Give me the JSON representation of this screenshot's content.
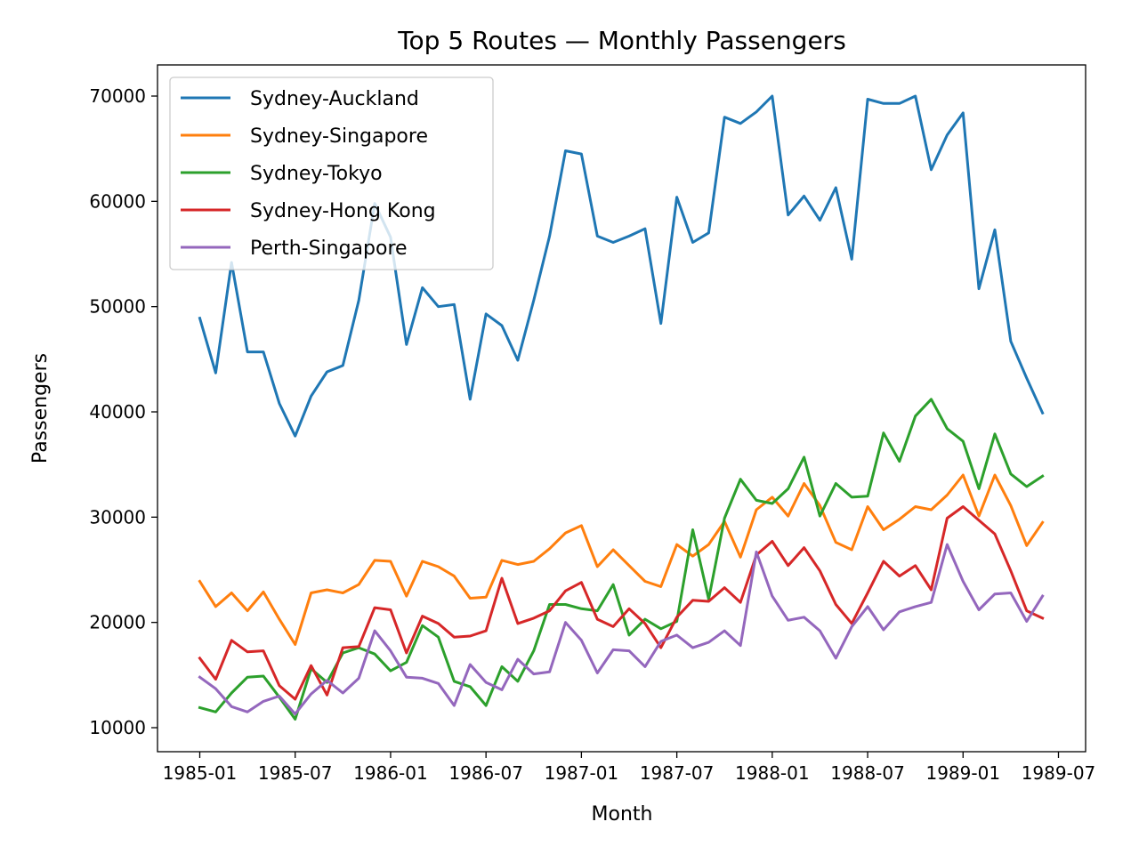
{
  "chart_data": {
    "type": "line",
    "title": "Top 5 Routes — Monthly Passengers",
    "xlabel": "Month",
    "ylabel": "Passengers",
    "x_start": "1985-01",
    "xticks": [
      "1985-01",
      "1985-07",
      "1986-01",
      "1986-07",
      "1987-01",
      "1987-07",
      "1988-01",
      "1988-07",
      "1989-01",
      "1989-07"
    ],
    "yticks": [
      10000,
      20000,
      30000,
      40000,
      50000,
      60000,
      70000
    ],
    "ylim": [
      8000,
      73000
    ],
    "grid": false,
    "legend_position": "top-left",
    "series": [
      {
        "name": "Sydney-Auckland",
        "color": "#1f77b4",
        "values": [
          48900,
          43700,
          54200,
          45700,
          45700,
          40800,
          37700,
          41500,
          43800,
          44400,
          50600,
          59800,
          56600,
          46400,
          51800,
          50000,
          50200,
          41200,
          49300,
          48200,
          44900,
          50600,
          56700,
          64800,
          64500,
          56700,
          56100,
          56700,
          57400,
          48400,
          60400,
          56100,
          57000,
          68000,
          67400,
          68500,
          70000,
          58700,
          60500,
          58200,
          61300,
          54500,
          69700,
          69300,
          69300,
          70000,
          63000,
          66300,
          68400,
          51700,
          57300,
          46700,
          43200,
          39900
        ]
      },
      {
        "name": "Sydney-Singapore",
        "color": "#ff7f0e",
        "values": [
          23900,
          21500,
          22800,
          21100,
          22900,
          20300,
          17900,
          22800,
          23100,
          22800,
          23600,
          25900,
          25800,
          22500,
          25800,
          25300,
          24400,
          22300,
          22400,
          25900,
          25500,
          25800,
          27000,
          28500,
          29200,
          25300,
          26900,
          25400,
          23900,
          23400,
          27400,
          26300,
          27400,
          29600,
          26200,
          30700,
          31900,
          30100,
          33200,
          31100,
          27600,
          26900,
          31000,
          28800,
          29800,
          31000,
          30700,
          32100,
          34000,
          30100,
          34000,
          31100,
          27300,
          29500
        ]
      },
      {
        "name": "Sydney-Tokyo",
        "color": "#2ca02c",
        "values": [
          11900,
          11500,
          13300,
          14800,
          14900,
          12900,
          10800,
          15600,
          14300,
          17100,
          17600,
          17000,
          15400,
          16200,
          19700,
          18600,
          14400,
          13900,
          12100,
          15800,
          14400,
          17300,
          21700,
          21700,
          21300,
          21100,
          23600,
          18800,
          20300,
          19400,
          20100,
          28800,
          22200,
          29900,
          33600,
          31600,
          31300,
          32700,
          35700,
          30100,
          33200,
          31900,
          32000,
          38000,
          35300,
          39600,
          41200,
          38400,
          37200,
          32700,
          37900,
          34100,
          32900,
          33900
        ]
      },
      {
        "name": "Sydney-Hong Kong",
        "color": "#d62728",
        "values": [
          16600,
          14600,
          18300,
          17200,
          17300,
          14000,
          12700,
          15900,
          13100,
          17600,
          17700,
          21400,
          21200,
          17100,
          20600,
          19900,
          18600,
          18700,
          19200,
          24200,
          19900,
          20400,
          21100,
          23000,
          23800,
          20300,
          19600,
          21300,
          19900,
          17600,
          20500,
          22100,
          22000,
          23300,
          21900,
          26400,
          27700,
          25400,
          27100,
          24900,
          21700,
          19900,
          22800,
          25800,
          24400,
          25400,
          23100,
          29900,
          31000,
          29700,
          28400,
          24900,
          21100,
          20400
        ]
      },
      {
        "name": "Perth-Singapore",
        "color": "#9467bd",
        "values": [
          14800,
          13700,
          12000,
          11500,
          12500,
          13000,
          11300,
          13200,
          14500,
          13300,
          14700,
          19200,
          17300,
          14800,
          14700,
          14200,
          12100,
          16000,
          14300,
          13600,
          16500,
          15100,
          15300,
          20000,
          18300,
          15200,
          17400,
          17300,
          15800,
          18200,
          18800,
          17600,
          18100,
          19200,
          17800,
          26700,
          22500,
          20200,
          20500,
          19200,
          16600,
          19600,
          21500,
          19300,
          21000,
          21500,
          21900,
          27400,
          23900,
          21200,
          22700,
          22800,
          20100,
          22500
        ]
      }
    ]
  }
}
